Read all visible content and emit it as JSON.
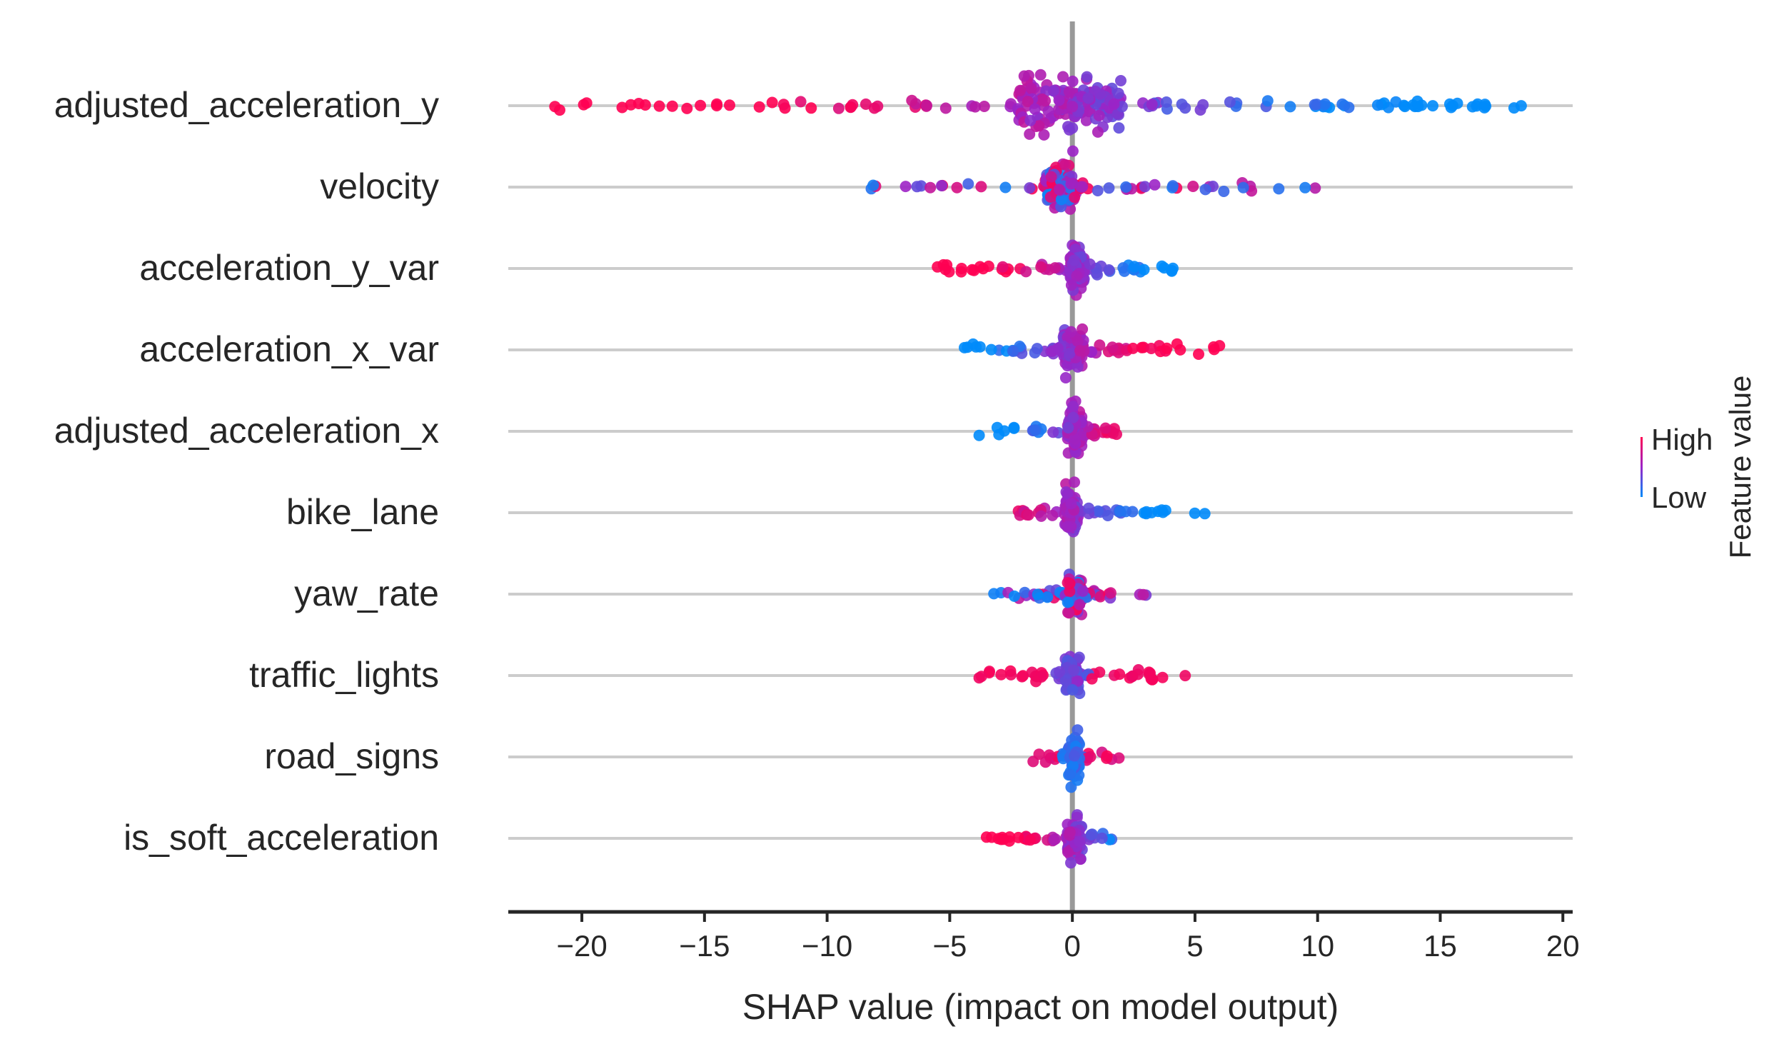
{
  "chart_data": {
    "type": "scatter",
    "subtype": "shap-beeswarm",
    "xlabel": "SHAP value (impact on model output)",
    "xlim": [
      -23,
      20.4
    ],
    "xticks": [
      -20,
      -15,
      -10,
      -5,
      0,
      5,
      10,
      15,
      20
    ],
    "xtick_labels": [
      "−20",
      "−15",
      "−10",
      "−5",
      "0",
      "5",
      "10",
      "15",
      "20"
    ],
    "features": [
      {
        "name": "adjusted_acceleration_y",
        "min": -21.1,
        "max": 18.3,
        "core": [
          -2.2,
          2.0
        ],
        "spread": 1.0,
        "skew": "high-left",
        "density": 260
      },
      {
        "name": "velocity",
        "min": -8.2,
        "max": 9.9,
        "core": [
          -1.1,
          0.2
        ],
        "spread": 0.85,
        "skew": "mixed",
        "density": 150
      },
      {
        "name": "acceleration_y_var",
        "min": -5.5,
        "max": 4.1,
        "core": [
          -0.1,
          0.5
        ],
        "spread": 0.8,
        "skew": "high-left",
        "density": 140
      },
      {
        "name": "acceleration_x_var",
        "min": -4.4,
        "max": 6.0,
        "core": [
          -0.4,
          0.5
        ],
        "spread": 0.75,
        "skew": "high-right",
        "density": 140
      },
      {
        "name": "adjusted_acceleration_x",
        "min": -3.8,
        "max": 1.8,
        "core": [
          -0.2,
          0.4
        ],
        "spread": 0.8,
        "skew": "low-left",
        "density": 120
      },
      {
        "name": "bike_lane",
        "min": -2.2,
        "max": 5.4,
        "core": [
          -0.3,
          0.2
        ],
        "spread": 0.75,
        "skew": "high-left",
        "density": 120
      },
      {
        "name": "yaw_rate",
        "min": -3.2,
        "max": 3.0,
        "core": [
          -0.2,
          0.4
        ],
        "spread": 0.75,
        "skew": "mixed",
        "density": 100
      },
      {
        "name": "traffic_lights",
        "min": -3.8,
        "max": 4.6,
        "core": [
          -0.3,
          0.3
        ],
        "spread": 0.7,
        "skew": "high-both",
        "density": 130
      },
      {
        "name": "road_signs",
        "min": -1.6,
        "max": 1.9,
        "core": [
          -0.2,
          0.3
        ],
        "spread": 0.8,
        "skew": "low-core",
        "density": 90
      },
      {
        "name": "is_soft_acceleration",
        "min": -3.5,
        "max": 1.6,
        "core": [
          -0.2,
          0.4
        ],
        "spread": 0.75,
        "skew": "high-left",
        "density": 100
      }
    ],
    "colorbar": {
      "label": "Feature value",
      "high_label": "High",
      "low_label": "Low"
    },
    "colors": {
      "high": "#ff0052",
      "mid": "#9b24c7",
      "low": "#008bfb",
      "gridline": "#cccccc",
      "zero_line": "#999999",
      "axis": "#262626"
    }
  }
}
